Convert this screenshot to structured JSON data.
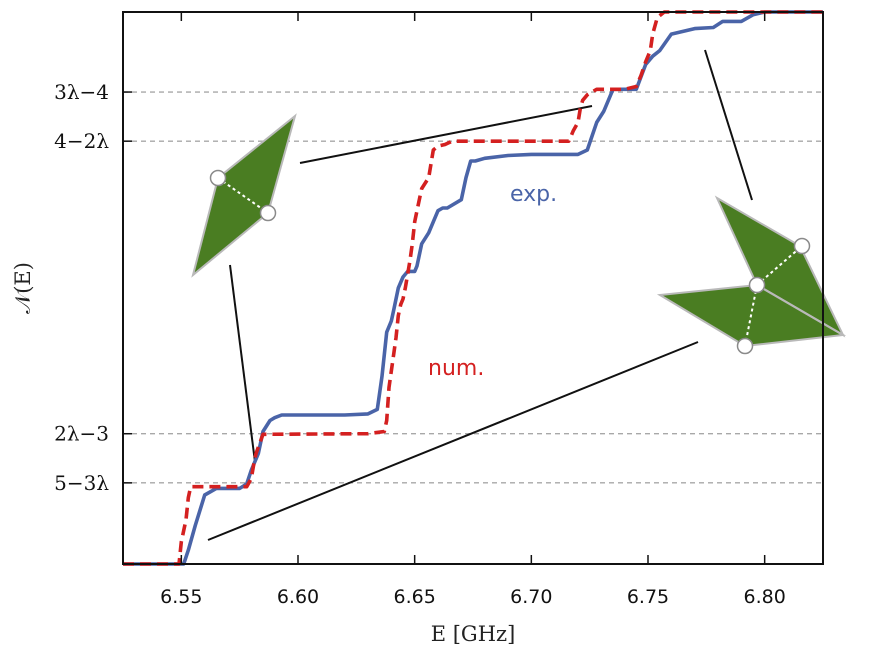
{
  "chart_data": {
    "type": "line",
    "xlabel": "E [GHz]",
    "ylabel": "𝒩(E)",
    "xlim": [
      6.525,
      6.825
    ],
    "ylim": [
      0,
      1
    ],
    "xticks": [
      6.55,
      6.6,
      6.65,
      6.7,
      6.75,
      6.8
    ],
    "xtick_labels": [
      "6.55",
      "6.60",
      "6.65",
      "6.70",
      "6.75",
      "6.80"
    ],
    "reference_lines": [
      {
        "label": "3λ−4",
        "y": 0.855
      },
      {
        "label": "4−2λ",
        "y": 0.766
      },
      {
        "label": "2λ−3",
        "y": 0.236
      },
      {
        "label": "5−3λ",
        "y": 0.147
      }
    ],
    "grid": false,
    "series": [
      {
        "name": "exp.",
        "color": "#4a64a8",
        "style": "solid",
        "x": [
          6.525,
          6.551,
          6.553,
          6.556,
          6.56,
          6.565,
          6.575,
          6.578,
          6.58,
          6.583,
          6.585,
          6.588,
          6.59,
          6.593,
          6.597,
          6.62,
          6.63,
          6.634,
          6.636,
          6.638,
          6.64,
          6.641,
          6.643,
          6.645,
          6.647,
          6.65,
          6.651,
          6.653,
          6.656,
          6.658,
          6.66,
          6.662,
          6.664,
          6.67,
          6.672,
          6.674,
          6.676,
          6.68,
          6.69,
          6.7,
          6.72,
          6.724,
          6.728,
          6.731,
          6.735,
          6.745,
          6.749,
          6.752,
          6.755,
          6.76,
          6.77,
          6.778,
          6.782,
          6.79,
          6.795,
          6.8,
          6.825
        ],
        "y": [
          0,
          0,
          0.025,
          0.07,
          0.125,
          0.137,
          0.137,
          0.145,
          0.17,
          0.2,
          0.24,
          0.26,
          0.265,
          0.27,
          0.27,
          0.27,
          0.272,
          0.28,
          0.34,
          0.42,
          0.44,
          0.46,
          0.5,
          0.52,
          0.53,
          0.53,
          0.54,
          0.58,
          0.6,
          0.62,
          0.64,
          0.645,
          0.645,
          0.66,
          0.7,
          0.73,
          0.73,
          0.735,
          0.74,
          0.742,
          0.742,
          0.75,
          0.8,
          0.82,
          0.86,
          0.86,
          0.905,
          0.92,
          0.93,
          0.96,
          0.97,
          0.972,
          0.983,
          0.983,
          0.995,
          1.0,
          1.0
        ]
      },
      {
        "name": "num.",
        "color": "#d42020",
        "style": "dashed",
        "x": [
          6.525,
          6.549,
          6.55,
          6.552,
          6.553,
          6.554,
          6.56,
          6.578,
          6.58,
          6.581,
          6.582,
          6.585,
          6.63,
          6.637,
          6.638,
          6.639,
          6.641,
          6.642,
          6.643,
          6.644,
          6.645,
          6.646,
          6.648,
          6.649,
          6.65,
          6.652,
          6.653,
          6.656,
          6.658,
          6.66,
          6.663,
          6.666,
          6.68,
          6.7,
          6.716,
          6.717,
          6.718,
          6.72,
          6.721,
          6.722,
          6.724,
          6.726,
          6.728,
          6.74,
          6.745,
          6.747,
          6.749,
          6.751,
          6.752,
          6.754,
          6.757,
          6.825
        ],
        "y": [
          0,
          0,
          0.04,
          0.08,
          0.12,
          0.14,
          0.14,
          0.14,
          0.155,
          0.18,
          0.2,
          0.235,
          0.236,
          0.24,
          0.26,
          0.32,
          0.38,
          0.41,
          0.45,
          0.47,
          0.48,
          0.5,
          0.55,
          0.58,
          0.62,
          0.66,
          0.68,
          0.7,
          0.75,
          0.757,
          0.76,
          0.766,
          0.766,
          0.766,
          0.766,
          0.775,
          0.785,
          0.8,
          0.825,
          0.84,
          0.85,
          0.855,
          0.86,
          0.86,
          0.865,
          0.885,
          0.91,
          0.93,
          0.96,
          0.99,
          1.0,
          1.0
        ]
      }
    ],
    "annotations": [
      "exp.",
      "num."
    ]
  }
}
